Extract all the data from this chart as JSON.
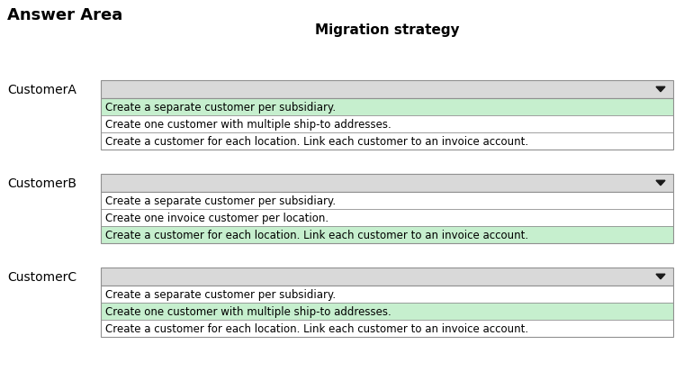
{
  "title_main": "Answer Area",
  "title_col": "Migration strategy",
  "customers": [
    "CustomerA",
    "CustomerB",
    "CustomerC"
  ],
  "dropdown_options": [
    [
      "Create a separate customer per subsidiary.",
      "Create one customer with multiple ship-to addresses.",
      "Create a customer for each location. Link each customer to an invoice account."
    ],
    [
      "Create a separate customer per subsidiary.",
      "Create one invoice customer per location.",
      "Create a customer for each location. Link each customer to an invoice account."
    ],
    [
      "Create a separate customer per subsidiary.",
      "Create one customer with multiple ship-to addresses.",
      "Create a customer for each location. Link each customer to an invoice account."
    ]
  ],
  "highlighted_rows": [
    0,
    2,
    1
  ],
  "bg_color": "#ffffff",
  "dropdown_bar_color": "#d9d9d9",
  "highlight_color": "#c6efce",
  "border_color": "#909090",
  "text_color": "#000000",
  "fig_w": 7.6,
  "fig_h": 4.14,
  "dpi": 100
}
